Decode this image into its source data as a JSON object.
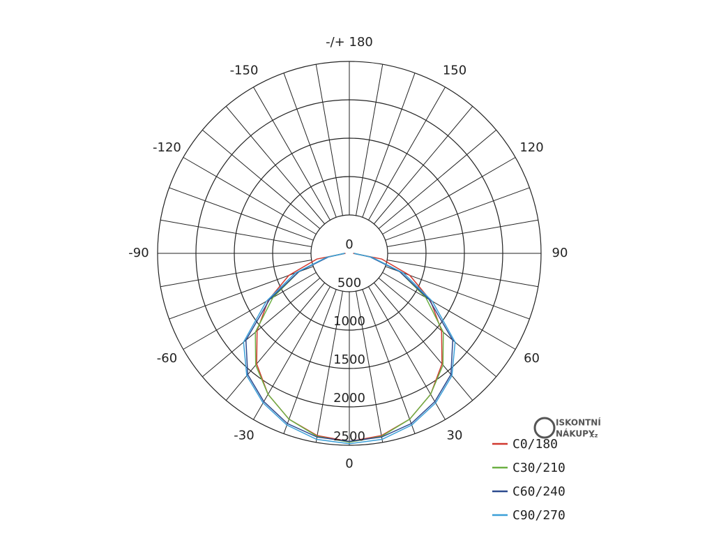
{
  "chart_data": {
    "type": "polar",
    "x": [
      -90,
      -80,
      -70,
      -60,
      -50,
      -40,
      -30,
      -20,
      -10,
      0,
      10,
      20,
      30,
      40,
      50,
      60,
      70,
      80,
      90
    ],
    "xticks": [
      {
        "value": 180,
        "label": "-/+ 180"
      },
      150,
      -150,
      120,
      -120,
      90,
      -90,
      60,
      -60,
      30,
      -30,
      0
    ],
    "ylim": [
      0,
      2500
    ],
    "yticks": [
      0,
      500,
      1000,
      1500,
      2000,
      2500
    ],
    "series": [
      {
        "name": "C0/180",
        "color": "#d0392f",
        "values": [
          50,
          430,
          840,
          1220,
          1570,
          1880,
          2120,
          2300,
          2410,
          2450,
          2410,
          2300,
          2120,
          1880,
          1570,
          1220,
          840,
          430,
          50
        ]
      },
      {
        "name": "C30/210",
        "color": "#6cb043",
        "values": [
          60,
          300,
          700,
          1150,
          1600,
          1900,
          2120,
          2300,
          2420,
          2460,
          2420,
          2300,
          2120,
          1900,
          1600,
          1150,
          700,
          300,
          60
        ]
      },
      {
        "name": "C60/240",
        "color": "#2c4a8e",
        "values": [
          60,
          280,
          700,
          1200,
          1760,
          2060,
          2230,
          2360,
          2430,
          2450,
          2430,
          2360,
          2230,
          2060,
          1760,
          1200,
          700,
          280,
          60
        ]
      },
      {
        "name": "C90/270",
        "color": "#3a9fd8",
        "values": [
          60,
          300,
          750,
          1250,
          1800,
          2080,
          2250,
          2380,
          2460,
          2480,
          2460,
          2380,
          2250,
          2080,
          1800,
          1250,
          750,
          300,
          60
        ]
      }
    ],
    "watermark": [
      "ISKONTNÍ",
      "NÁKUPY",
      ".cz"
    ]
  }
}
